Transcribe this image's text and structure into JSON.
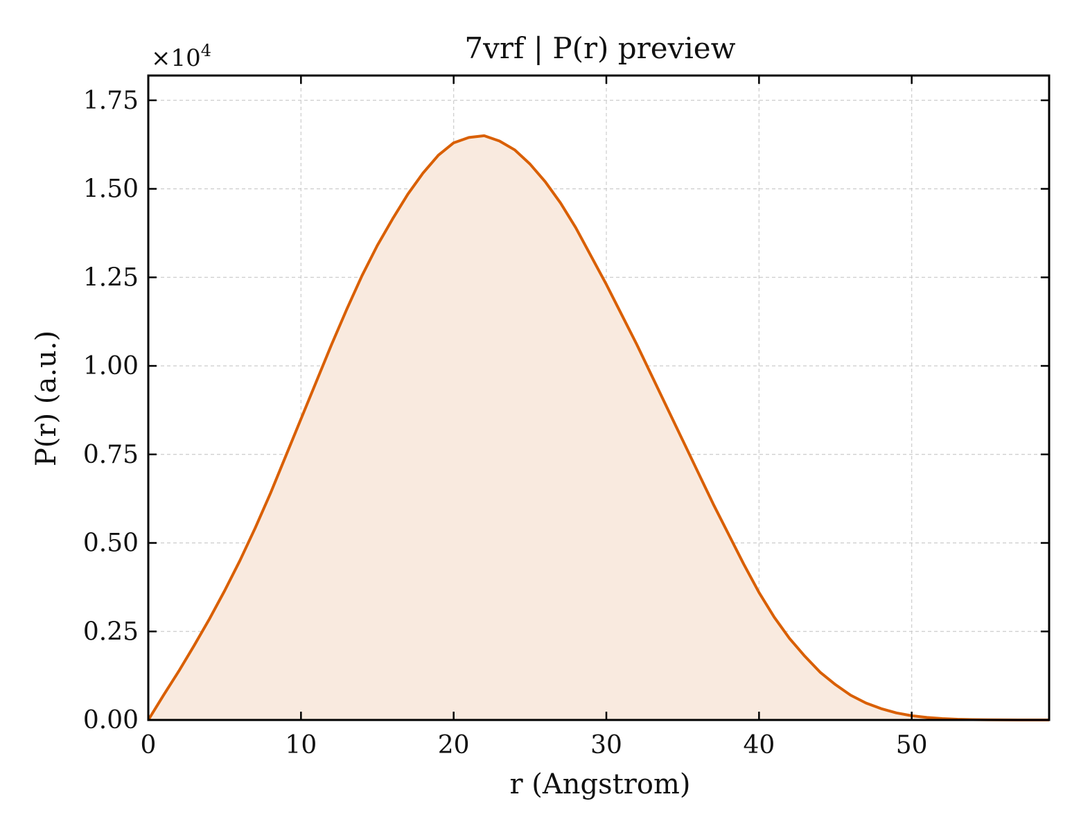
{
  "chart_data": {
    "type": "area",
    "title": "7vrf | P(r) preview",
    "xlabel": "r (Angstrom)",
    "ylabel": "P(r) (a.u.)",
    "y_offset_text": "×10",
    "y_offset_exponent": "4",
    "xlim": [
      0,
      59
    ],
    "ylim": [
      0,
      18200
    ],
    "xticks": [
      0,
      10,
      20,
      30,
      40,
      50
    ],
    "xtick_labels": [
      "0",
      "10",
      "20",
      "30",
      "40",
      "50"
    ],
    "yticks": [
      0,
      2500,
      5000,
      7500,
      10000,
      12500,
      15000,
      17500
    ],
    "ytick_labels": [
      "0.00",
      "0.25",
      "0.50",
      "0.75",
      "1.00",
      "1.25",
      "1.50",
      "1.75"
    ],
    "grid": true,
    "line_color": "#d95f02",
    "fill_color": "#f9eadf",
    "series": [
      {
        "x": [
          0,
          1,
          2,
          3,
          4,
          5,
          6,
          7,
          8,
          9,
          10,
          11,
          12,
          13,
          14,
          15,
          16,
          17,
          18,
          19,
          20,
          21,
          22,
          23,
          24,
          25,
          26,
          27,
          28,
          29,
          30,
          31,
          32,
          33,
          34,
          35,
          36,
          37,
          38,
          39,
          40,
          41,
          42,
          43,
          44,
          45,
          46,
          47,
          48,
          49,
          50,
          51,
          52,
          53,
          54,
          55,
          56,
          57,
          58,
          59
        ],
        "y": [
          0,
          700,
          1380,
          2100,
          2850,
          3650,
          4500,
          5420,
          6400,
          7450,
          8500,
          9550,
          10600,
          11600,
          12550,
          13400,
          14150,
          14850,
          15450,
          15950,
          16300,
          16450,
          16500,
          16350,
          16100,
          15700,
          15200,
          14600,
          13900,
          13100,
          12300,
          11450,
          10600,
          9700,
          8800,
          7900,
          7000,
          6100,
          5250,
          4400,
          3600,
          2900,
          2300,
          1800,
          1350,
          1000,
          700,
          480,
          320,
          200,
          120,
          70,
          40,
          20,
          10,
          5,
          2,
          0,
          0,
          0
        ]
      }
    ]
  }
}
